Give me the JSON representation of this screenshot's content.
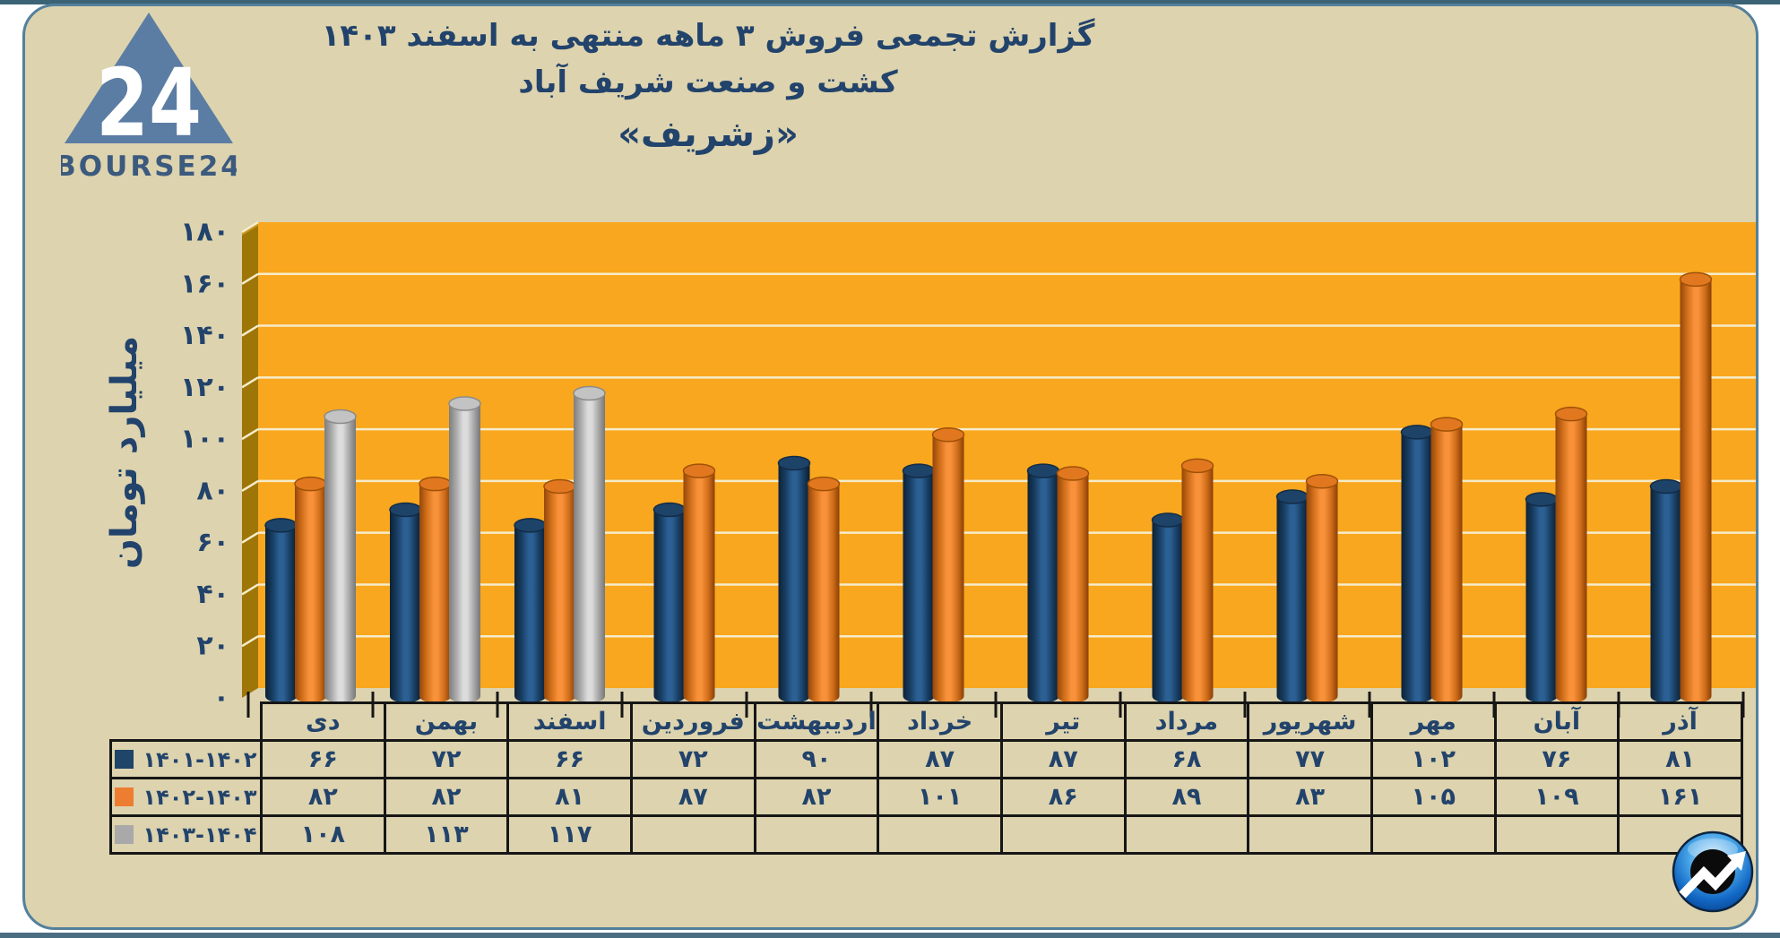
{
  "page": {
    "top_bar_color": "#3b6375",
    "bottom_bar_color": "#4b6d82",
    "card_bg": "#ddd3ae",
    "card_border": "#54809c",
    "text_color": "#22436b"
  },
  "logo": {
    "brand_text": "BOURSE24",
    "number": "24",
    "triangle_color": "#5b7da3",
    "wordmark_color": "#3c5a7e"
  },
  "title": {
    "line1": "گزارش تجمعی فروش ۳ ماهه منتهی به اسفند ۱۴۰۳",
    "line2": "کشت و صنعت شریف آباد",
    "line3": "«زشریف»"
  },
  "chart_data": {
    "type": "bar",
    "style": "3d-cylinder",
    "title": "گزارش تجمعی فروش ۳ ماهه منتهی به اسفند ۱۴۰۳ - کشت و صنعت شریف آباد «زشریف»",
    "xlabel": "",
    "ylabel": "میلیارد تومان",
    "ylim": [
      0,
      180
    ],
    "ytick_step": 20,
    "grid": true,
    "legend_position": "table-rows-left",
    "plot_bg": "#f9a71e",
    "wall_color": "#9e7608",
    "wall_bevel_color": "#c59422",
    "gridline_color": "#f6ecca",
    "axis_text_color": "#22436b",
    "tick_color": "#161616",
    "categories": [
      "دی",
      "بهمن",
      "اسفند",
      "فروردین",
      "اردیبهشت",
      "خرداد",
      "تیر",
      "مرداد",
      "شهریور",
      "مهر",
      "آبان",
      "آذر"
    ],
    "series": [
      {
        "name": "۱۴۰۱-۱۴۰۲",
        "color": "#1f4568",
        "values": [
          66,
          72,
          66,
          72,
          90,
          87,
          87,
          68,
          77,
          102,
          76,
          81
        ]
      },
      {
        "name": "۱۴۰۲-۱۴۰۳",
        "color": "#ed7d31",
        "values": [
          82,
          82,
          81,
          87,
          82,
          101,
          86,
          89,
          83,
          105,
          109,
          161
        ]
      },
      {
        "name": "۱۴۰۳-۱۴۰۴",
        "color": "#a9a9a9",
        "values": [
          108,
          113,
          117,
          null,
          null,
          null,
          null,
          null,
          null,
          null,
          null,
          null
        ]
      }
    ]
  },
  "footer_icon": {
    "semantic": "trend-arrow-badge",
    "ball_color": "#1c79d0",
    "center_color": "#0b0b0b",
    "arrow_color": "#ffffff"
  }
}
